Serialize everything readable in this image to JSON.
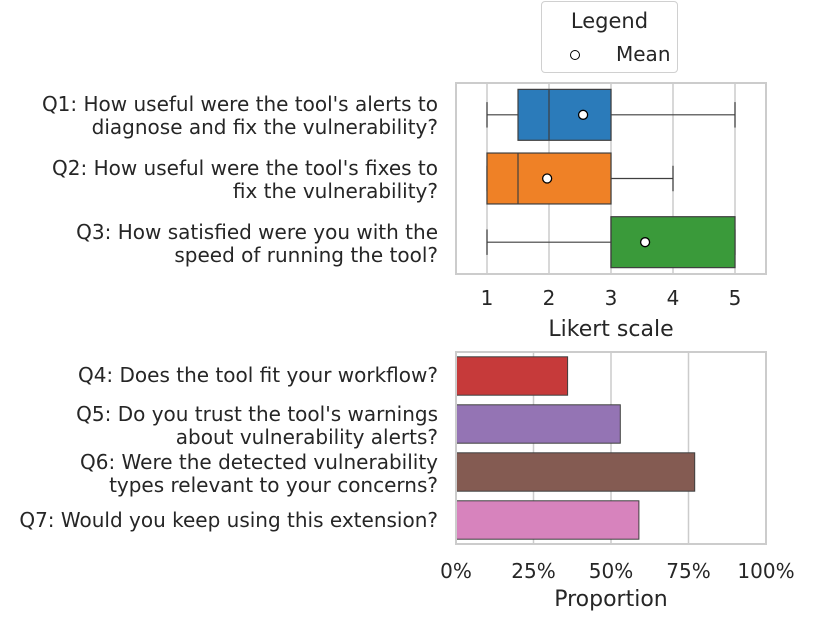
{
  "legend": {
    "title": "Legend",
    "mean_label": "Mean"
  },
  "chart_data": [
    {
      "type": "box",
      "xlabel": "Likert scale",
      "xlim": [
        0.5,
        5.5
      ],
      "xticks": [
        "1",
        "2",
        "3",
        "4",
        "5"
      ],
      "grid": true,
      "series": [
        {
          "line1": "Q1: How useful were the tool's alerts to",
          "line2": "diagnose and fix the vulnerability?",
          "color": "#2b7bba",
          "whisker_low": 1,
          "q1": 1.5,
          "median": 2,
          "q3": 3,
          "whisker_high": 5,
          "mean": 2.55
        },
        {
          "line1": "Q2: How useful were the tool's fixes to",
          "line2": "fix the vulnerability?",
          "color": "#ef8126",
          "whisker_low": 1,
          "q1": 1,
          "median": 1.5,
          "q3": 3,
          "whisker_high": 4,
          "mean": 1.97
        },
        {
          "line1": "Q3: How satisfied were you with the",
          "line2": "speed of running the tool?",
          "color": "#3a9a3a",
          "whisker_low": 1,
          "q1": 3,
          "median": 3,
          "q3": 5,
          "whisker_high": 5,
          "mean": 3.55
        }
      ]
    },
    {
      "type": "bar",
      "orientation": "horizontal",
      "xlabel": "Proportion",
      "xlim": [
        0,
        1
      ],
      "xticks": [
        "0%",
        "25%",
        "50%",
        "75%",
        "100%"
      ],
      "grid": true,
      "series": [
        {
          "line1": "Q4: Does the tool fit your workflow?",
          "line2": "",
          "color": "#c63a3a",
          "value": 0.36
        },
        {
          "line1": "Q5: Do you trust the tool's warnings",
          "line2": "about vulnerability alerts?",
          "color": "#9474b4",
          "value": 0.53
        },
        {
          "line1": "Q6: Were the detected vulnerability",
          "line2": "types relevant to your concerns?",
          "color": "#845b52",
          "value": 0.77
        },
        {
          "line1": "Q7: Would you keep using this extension?",
          "line2": "",
          "color": "#d783bd",
          "value": 0.59
        }
      ]
    }
  ]
}
